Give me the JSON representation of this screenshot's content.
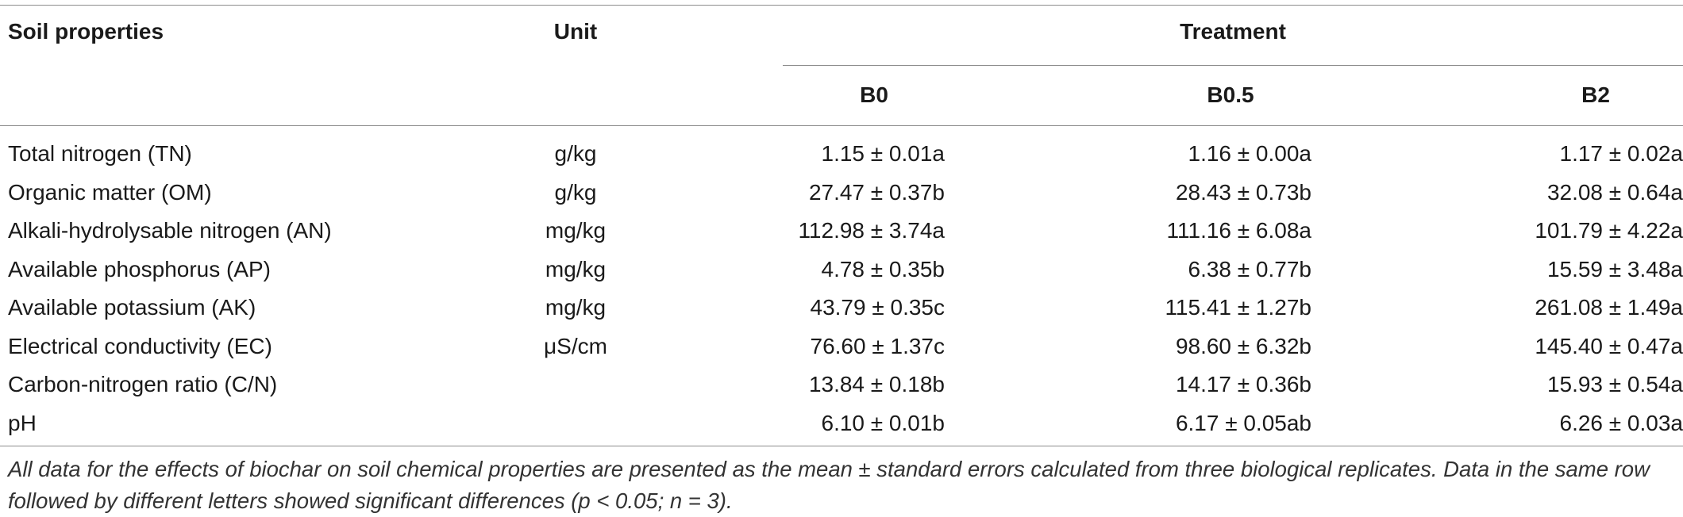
{
  "table": {
    "headers": {
      "property": "Soil properties",
      "unit": "Unit",
      "treatment": "Treatment",
      "sub": [
        "B0",
        "B0.5",
        "B2"
      ]
    },
    "rows": [
      {
        "property": "Total nitrogen (TN)",
        "unit": "g/kg",
        "b0": "1.15 ± 0.01a",
        "b05": "1.16 ± 0.00a",
        "b2": "1.17 ± 0.02a"
      },
      {
        "property": "Organic matter (OM)",
        "unit": "g/kg",
        "b0": "27.47 ± 0.37b",
        "b05": "28.43 ± 0.73b",
        "b2": "32.08 ± 0.64a"
      },
      {
        "property": "Alkali-hydrolysable nitrogen (AN)",
        "unit": "mg/kg",
        "b0": "112.98 ± 3.74a",
        "b05": "111.16 ± 6.08a",
        "b2": "101.79 ± 4.22a"
      },
      {
        "property": "Available phosphorus (AP)",
        "unit": "mg/kg",
        "b0": "4.78 ± 0.35b",
        "b05": "6.38 ± 0.77b",
        "b2": "15.59 ± 3.48a"
      },
      {
        "property": "Available potassium (AK)",
        "unit": "mg/kg",
        "b0": "43.79 ± 0.35c",
        "b05": "115.41 ± 1.27b",
        "b2": "261.08 ± 1.49a"
      },
      {
        "property": "Electrical conductivity (EC)",
        "unit": "μS/cm",
        "b0": "76.60 ± 1.37c",
        "b05": "98.60 ± 6.32b",
        "b2": "145.40 ± 0.47a"
      },
      {
        "property": "Carbon-nitrogen ratio (C/N)",
        "unit": "",
        "b0": "13.84 ± 0.18b",
        "b05": "14.17 ± 0.36b",
        "b2": "15.93 ± 0.54a"
      },
      {
        "property": "pH",
        "unit": "",
        "b0": "6.10 ± 0.01b",
        "b05": "6.17 ± 0.05ab",
        "b2": "6.26 ± 0.03a"
      }
    ],
    "footnote": "All data for the effects of biochar on soil chemical properties are presented as the mean ± standard errors calculated from three biological replicates. Data in the same row followed by different letters showed significant differences (p < 0.05; n = 3)."
  }
}
